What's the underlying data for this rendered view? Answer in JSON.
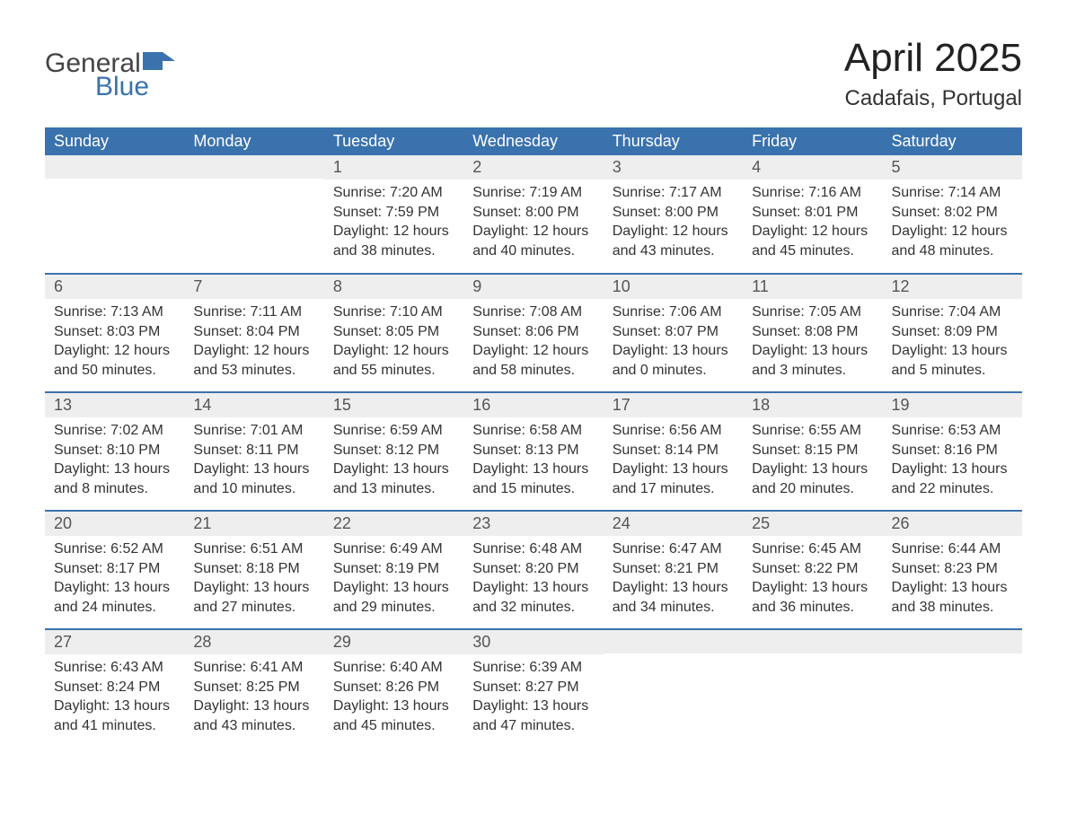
{
  "logo": {
    "text_general": "General",
    "text_blue": "Blue",
    "shape_color": "#3a72ad",
    "general_color": "#444444",
    "blue_color": "#3a72ad"
  },
  "header": {
    "month_title": "April 2025",
    "location": "Cadafais, Portugal"
  },
  "style": {
    "header_bg": "#3a72ad",
    "header_text": "#ffffff",
    "daynum_bg": "#eeeeee",
    "week_divider": "#3a72ad",
    "body_bg": "#ffffff",
    "body_text": "#333333",
    "font_family": "Arial",
    "th_fontsize": 18,
    "daynum_fontsize": 18,
    "body_fontsize": 16,
    "title_fontsize": 44,
    "location_fontsize": 24
  },
  "day_labels": [
    "Sunday",
    "Monday",
    "Tuesday",
    "Wednesday",
    "Thursday",
    "Friday",
    "Saturday"
  ],
  "weeks": [
    [
      {
        "num": "",
        "sunrise": "",
        "sunset": "",
        "daylight": ""
      },
      {
        "num": "",
        "sunrise": "",
        "sunset": "",
        "daylight": ""
      },
      {
        "num": "1",
        "sunrise": "Sunrise: 7:20 AM",
        "sunset": "Sunset: 7:59 PM",
        "daylight": "Daylight: 12 hours and 38 minutes."
      },
      {
        "num": "2",
        "sunrise": "Sunrise: 7:19 AM",
        "sunset": "Sunset: 8:00 PM",
        "daylight": "Daylight: 12 hours and 40 minutes."
      },
      {
        "num": "3",
        "sunrise": "Sunrise: 7:17 AM",
        "sunset": "Sunset: 8:00 PM",
        "daylight": "Daylight: 12 hours and 43 minutes."
      },
      {
        "num": "4",
        "sunrise": "Sunrise: 7:16 AM",
        "sunset": "Sunset: 8:01 PM",
        "daylight": "Daylight: 12 hours and 45 minutes."
      },
      {
        "num": "5",
        "sunrise": "Sunrise: 7:14 AM",
        "sunset": "Sunset: 8:02 PM",
        "daylight": "Daylight: 12 hours and 48 minutes."
      }
    ],
    [
      {
        "num": "6",
        "sunrise": "Sunrise: 7:13 AM",
        "sunset": "Sunset: 8:03 PM",
        "daylight": "Daylight: 12 hours and 50 minutes."
      },
      {
        "num": "7",
        "sunrise": "Sunrise: 7:11 AM",
        "sunset": "Sunset: 8:04 PM",
        "daylight": "Daylight: 12 hours and 53 minutes."
      },
      {
        "num": "8",
        "sunrise": "Sunrise: 7:10 AM",
        "sunset": "Sunset: 8:05 PM",
        "daylight": "Daylight: 12 hours and 55 minutes."
      },
      {
        "num": "9",
        "sunrise": "Sunrise: 7:08 AM",
        "sunset": "Sunset: 8:06 PM",
        "daylight": "Daylight: 12 hours and 58 minutes."
      },
      {
        "num": "10",
        "sunrise": "Sunrise: 7:06 AM",
        "sunset": "Sunset: 8:07 PM",
        "daylight": "Daylight: 13 hours and 0 minutes."
      },
      {
        "num": "11",
        "sunrise": "Sunrise: 7:05 AM",
        "sunset": "Sunset: 8:08 PM",
        "daylight": "Daylight: 13 hours and 3 minutes."
      },
      {
        "num": "12",
        "sunrise": "Sunrise: 7:04 AM",
        "sunset": "Sunset: 8:09 PM",
        "daylight": "Daylight: 13 hours and 5 minutes."
      }
    ],
    [
      {
        "num": "13",
        "sunrise": "Sunrise: 7:02 AM",
        "sunset": "Sunset: 8:10 PM",
        "daylight": "Daylight: 13 hours and 8 minutes."
      },
      {
        "num": "14",
        "sunrise": "Sunrise: 7:01 AM",
        "sunset": "Sunset: 8:11 PM",
        "daylight": "Daylight: 13 hours and 10 minutes."
      },
      {
        "num": "15",
        "sunrise": "Sunrise: 6:59 AM",
        "sunset": "Sunset: 8:12 PM",
        "daylight": "Daylight: 13 hours and 13 minutes."
      },
      {
        "num": "16",
        "sunrise": "Sunrise: 6:58 AM",
        "sunset": "Sunset: 8:13 PM",
        "daylight": "Daylight: 13 hours and 15 minutes."
      },
      {
        "num": "17",
        "sunrise": "Sunrise: 6:56 AM",
        "sunset": "Sunset: 8:14 PM",
        "daylight": "Daylight: 13 hours and 17 minutes."
      },
      {
        "num": "18",
        "sunrise": "Sunrise: 6:55 AM",
        "sunset": "Sunset: 8:15 PM",
        "daylight": "Daylight: 13 hours and 20 minutes."
      },
      {
        "num": "19",
        "sunrise": "Sunrise: 6:53 AM",
        "sunset": "Sunset: 8:16 PM",
        "daylight": "Daylight: 13 hours and 22 minutes."
      }
    ],
    [
      {
        "num": "20",
        "sunrise": "Sunrise: 6:52 AM",
        "sunset": "Sunset: 8:17 PM",
        "daylight": "Daylight: 13 hours and 24 minutes."
      },
      {
        "num": "21",
        "sunrise": "Sunrise: 6:51 AM",
        "sunset": "Sunset: 8:18 PM",
        "daylight": "Daylight: 13 hours and 27 minutes."
      },
      {
        "num": "22",
        "sunrise": "Sunrise: 6:49 AM",
        "sunset": "Sunset: 8:19 PM",
        "daylight": "Daylight: 13 hours and 29 minutes."
      },
      {
        "num": "23",
        "sunrise": "Sunrise: 6:48 AM",
        "sunset": "Sunset: 8:20 PM",
        "daylight": "Daylight: 13 hours and 32 minutes."
      },
      {
        "num": "24",
        "sunrise": "Sunrise: 6:47 AM",
        "sunset": "Sunset: 8:21 PM",
        "daylight": "Daylight: 13 hours and 34 minutes."
      },
      {
        "num": "25",
        "sunrise": "Sunrise: 6:45 AM",
        "sunset": "Sunset: 8:22 PM",
        "daylight": "Daylight: 13 hours and 36 minutes."
      },
      {
        "num": "26",
        "sunrise": "Sunrise: 6:44 AM",
        "sunset": "Sunset: 8:23 PM",
        "daylight": "Daylight: 13 hours and 38 minutes."
      }
    ],
    [
      {
        "num": "27",
        "sunrise": "Sunrise: 6:43 AM",
        "sunset": "Sunset: 8:24 PM",
        "daylight": "Daylight: 13 hours and 41 minutes."
      },
      {
        "num": "28",
        "sunrise": "Sunrise: 6:41 AM",
        "sunset": "Sunset: 8:25 PM",
        "daylight": "Daylight: 13 hours and 43 minutes."
      },
      {
        "num": "29",
        "sunrise": "Sunrise: 6:40 AM",
        "sunset": "Sunset: 8:26 PM",
        "daylight": "Daylight: 13 hours and 45 minutes."
      },
      {
        "num": "30",
        "sunrise": "Sunrise: 6:39 AM",
        "sunset": "Sunset: 8:27 PM",
        "daylight": "Daylight: 13 hours and 47 minutes."
      },
      {
        "num": "",
        "sunrise": "",
        "sunset": "",
        "daylight": ""
      },
      {
        "num": "",
        "sunrise": "",
        "sunset": "",
        "daylight": ""
      },
      {
        "num": "",
        "sunrise": "",
        "sunset": "",
        "daylight": ""
      }
    ]
  ]
}
